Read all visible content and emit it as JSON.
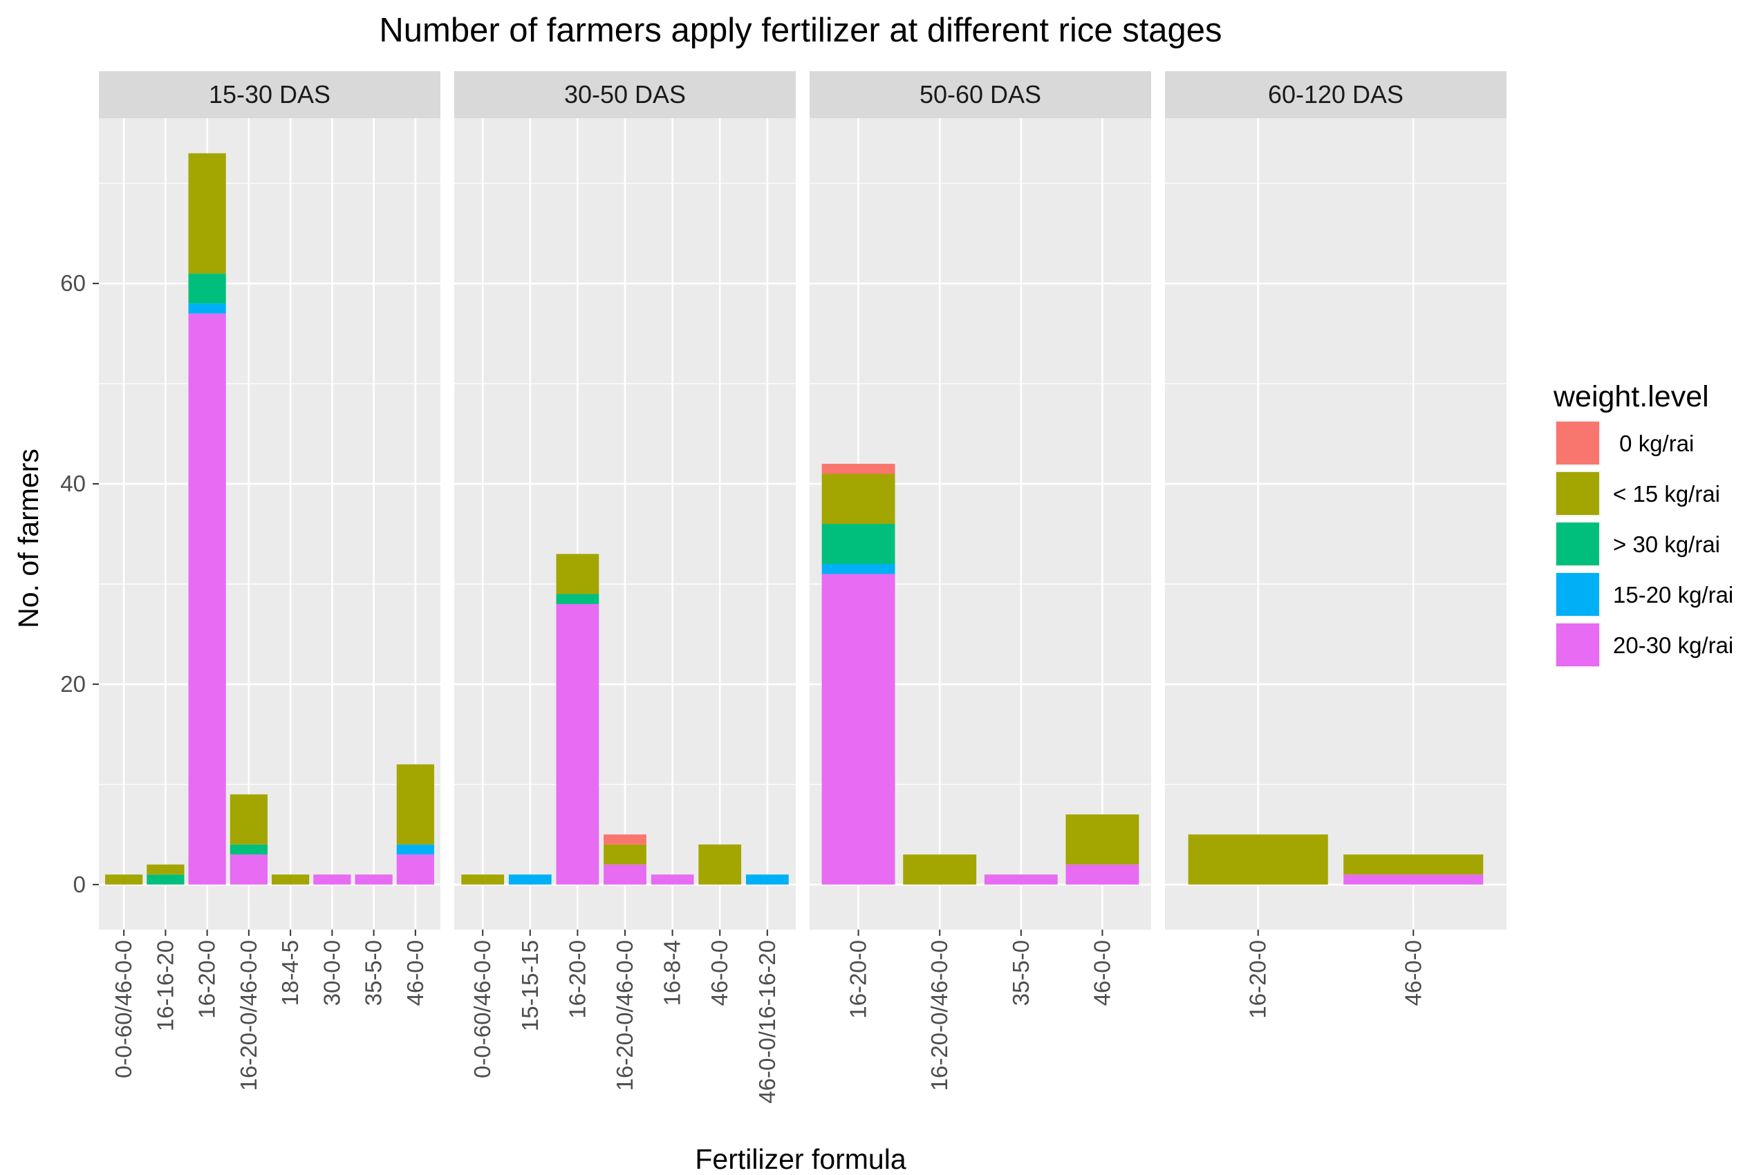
{
  "chart_data": {
    "type": "bar",
    "stacked": true,
    "faceted": true,
    "title": "Number of farmers apply fertilizer at different rice stages",
    "xlabel": "Fertilizer formula",
    "ylabel": "No. of farmers",
    "ylim": [
      -4.5,
      76.5
    ],
    "yticks": [
      0,
      20,
      40,
      60
    ],
    "grid": true,
    "legend": {
      "title": "weight.level",
      "position": "right",
      "entries": [
        {
          "key": "0kg",
          "label": " 0 kg/rai",
          "color": "#F8766D"
        },
        {
          "key": "lt15",
          "label": "< 15 kg/rai",
          "color": "#A3A500"
        },
        {
          "key": "gt30",
          "label": "> 30 kg/rai",
          "color": "#00BF7D"
        },
        {
          "key": "15to20",
          "label": "15-20 kg/rai",
          "color": "#00B0F6"
        },
        {
          "key": "20to30",
          "label": "20-30 kg/rai",
          "color": "#E76BF3"
        }
      ]
    },
    "stack_order_bottom_to_top": [
      "20to30",
      "15to20",
      "gt30",
      "lt15",
      "0kg"
    ],
    "panels": [
      {
        "strip": "15-30 DAS",
        "categories": [
          "0-0-60/46-0-0",
          "16-16-20",
          "16-20-0",
          "16-20-0/46-0-0",
          "18-4-5",
          "30-0-0",
          "35-5-0",
          "46-0-0"
        ],
        "bars": [
          {
            "lt15": 1
          },
          {
            "gt30": 1,
            "lt15": 1
          },
          {
            "20to30": 57,
            "15to20": 1,
            "gt30": 3,
            "lt15": 12
          },
          {
            "20to30": 3,
            "gt30": 1,
            "lt15": 5
          },
          {
            "lt15": 1
          },
          {
            "20to30": 1
          },
          {
            "20to30": 1
          },
          {
            "20to30": 3,
            "15to20": 1,
            "lt15": 8
          }
        ]
      },
      {
        "strip": "30-50 DAS",
        "categories": [
          "0-0-60/46-0-0",
          "15-15-15",
          "16-20-0",
          "16-20-0/46-0-0",
          "16-8-4",
          "46-0-0",
          "46-0-0/16-16-20"
        ],
        "bars": [
          {
            "lt15": 1
          },
          {
            "15to20": 1
          },
          {
            "20to30": 28,
            "gt30": 1,
            "lt15": 4
          },
          {
            "20to30": 2,
            "lt15": 2,
            "0kg": 1
          },
          {
            "20to30": 1
          },
          {
            "lt15": 4
          },
          {
            "15to20": 1
          }
        ]
      },
      {
        "strip": "50-60 DAS",
        "categories": [
          "16-20-0",
          "16-20-0/46-0-0",
          "35-5-0",
          "46-0-0"
        ],
        "bars": [
          {
            "20to30": 31,
            "15to20": 1,
            "gt30": 4,
            "lt15": 5,
            "0kg": 1
          },
          {
            "lt15": 3
          },
          {
            "20to30": 1
          },
          {
            "20to30": 2,
            "lt15": 5
          }
        ]
      },
      {
        "strip": "60-120 DAS",
        "categories": [
          "16-20-0",
          "46-0-0"
        ],
        "bars": [
          {
            "lt15": 5
          },
          {
            "20to30": 1,
            "lt15": 2
          }
        ]
      }
    ]
  }
}
